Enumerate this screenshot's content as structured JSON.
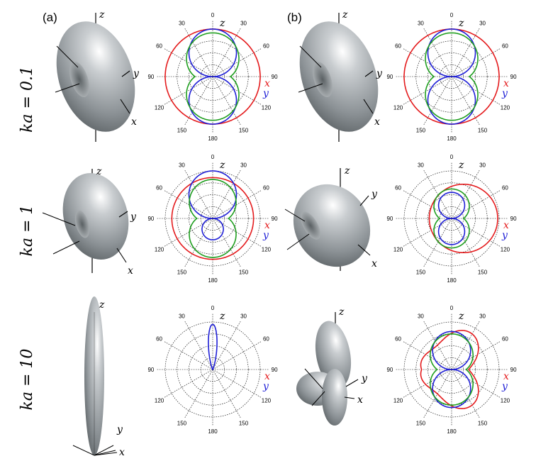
{
  "figure": {
    "panel_labels": [
      "(a)",
      "(b)"
    ],
    "row_labels": [
      "ka = 0.1",
      "ka = 1",
      "ka = 10"
    ],
    "axis_letters": {
      "x": "x",
      "y": "y",
      "z": "z"
    },
    "angle_labels": [
      "0",
      "30",
      "60",
      "90",
      "120",
      "150",
      "180"
    ],
    "colors": {
      "x": "#e41a1c",
      "y": "#1f1fd6",
      "z": "#1f9e1f",
      "surface": "#9aa0a4"
    }
  },
  "chart_data": [
    {
      "type": "polar",
      "title": "",
      "panel": "(a)",
      "ka": 0.1,
      "series": [
        {
          "name": "x",
          "color": "#e41a1c",
          "shape": "circle",
          "relative_radius": 1.0
        },
        {
          "name": "y",
          "color": "#1f1fd6",
          "shape": "dipole",
          "relative_radius": 1.0
        },
        {
          "name": "",
          "color": "#1f9e1f",
          "shape": "mixed",
          "relative_radius": 0.92
        }
      ]
    },
    {
      "type": "polar",
      "title": "",
      "panel": "(b)",
      "ka": 0.1,
      "series": [
        {
          "name": "x",
          "color": "#e41a1c",
          "shape": "circle",
          "relative_radius": 1.0
        },
        {
          "name": "y",
          "color": "#1f1fd6",
          "shape": "dipole",
          "relative_radius": 1.0
        },
        {
          "name": "",
          "color": "#1f9e1f",
          "shape": "mixed",
          "relative_radius": 0.92
        }
      ]
    },
    {
      "type": "polar",
      "title": "",
      "panel": "(a)",
      "ka": 1,
      "series": [
        {
          "name": "x",
          "color": "#e41a1c",
          "shape": "circle",
          "relative_radius": 0.86
        },
        {
          "name": "y",
          "color": "#1f1fd6",
          "shape": "dipole-asymmetric",
          "front": 1.0,
          "back": 0.45
        },
        {
          "name": "",
          "color": "#1f9e1f",
          "shape": "mixed",
          "relative_radius": 0.82
        }
      ]
    },
    {
      "type": "polar",
      "title": "",
      "panel": "(b)",
      "ka": 1,
      "series": [
        {
          "name": "x",
          "color": "#e41a1c",
          "shape": "offset-circle",
          "relative_radius": 0.72
        },
        {
          "name": "y",
          "color": "#1f1fd6",
          "shape": "dipole",
          "relative_radius": 0.55
        },
        {
          "name": "",
          "color": "#1f9e1f",
          "shape": "mixed",
          "relative_radius": 0.62
        }
      ]
    },
    {
      "type": "polar",
      "title": "",
      "panel": "(a)",
      "ka": 10,
      "series": [
        {
          "name": "y",
          "color": "#1f1fd6",
          "shape": "narrow-lobe",
          "relative_radius": 0.95
        }
      ]
    },
    {
      "type": "polar",
      "title": "",
      "panel": "(b)",
      "ka": 10,
      "series": [
        {
          "name": "x",
          "color": "#e41a1c",
          "shape": "irregular",
          "relative_radius": 0.9
        },
        {
          "name": "y",
          "color": "#1f1fd6",
          "shape": "dipole",
          "relative_radius": 0.8
        },
        {
          "name": "",
          "color": "#1f9e1f",
          "shape": "mixed",
          "relative_radius": 0.75
        }
      ]
    }
  ]
}
